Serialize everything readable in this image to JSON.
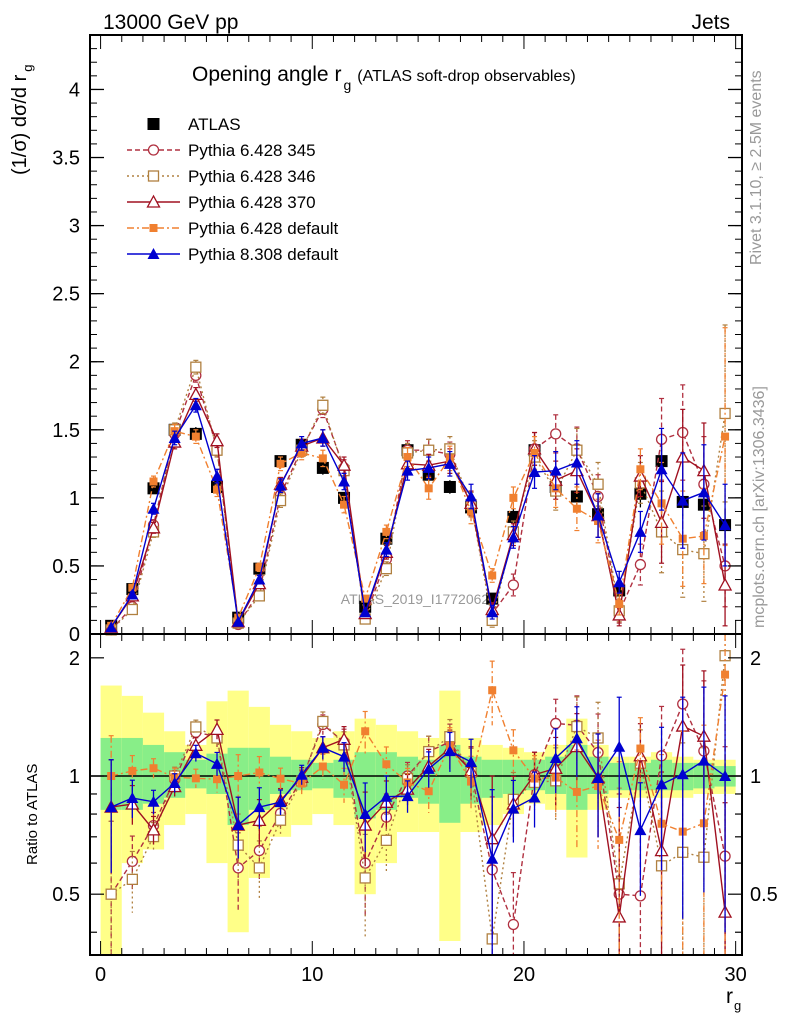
{
  "header": {
    "left": "13000 GeV pp",
    "right": "Jets"
  },
  "side_labels": {
    "rivet": "Rivet 3.1.10, ≥ 2.5M events",
    "mcplots": "mcplots.cern.ch [arXiv:1306.3436]"
  },
  "watermark": "ATLAS_2019_I1772062",
  "chart_data": {
    "type": "line",
    "title_main": "Opening angle r",
    "title_sub": "g",
    "title_paren": "(ATLAS soft-drop observables)",
    "ylabel_main": "(1/σ) dσ/d r",
    "ylabel_sub": "g",
    "xlabel_main": "r",
    "xlabel_sub": "g",
    "ratio_ylabel": "Ratio to ATLAS",
    "xlim": [
      -0.5,
      30.3
    ],
    "ylim": [
      0,
      4.4
    ],
    "ratio_ylim": [
      0.35,
      2.3
    ],
    "ratio_log": true,
    "x_ticks": [
      "0",
      "10",
      "20",
      "30"
    ],
    "x_tick_values": [
      0,
      10,
      20,
      30
    ],
    "y_ticks": [
      "0",
      "0.5",
      "1",
      "1.5",
      "2",
      "2.5",
      "3",
      "3.5",
      "4"
    ],
    "y_tick_values": [
      0,
      0.5,
      1,
      1.5,
      2,
      2.5,
      3,
      3.5,
      4
    ],
    "ratio_ticks": [
      "0.5",
      "1",
      "2"
    ],
    "ratio_tick_values": [
      0.5,
      1,
      2
    ],
    "x": [
      0.5,
      1.5,
      2.5,
      3.5,
      4.5,
      5.5,
      6.5,
      7.5,
      8.5,
      9.5,
      10.5,
      11.5,
      12.5,
      13.5,
      14.5,
      15.5,
      16.5,
      17.5,
      18.5,
      19.5,
      20.5,
      21.5,
      22.5,
      23.5,
      24.5,
      25.5,
      26.5,
      27.5,
      28.5,
      29.5
    ],
    "series": [
      {
        "name": "ATLAS",
        "color": "#000000",
        "marker": "square-filled",
        "values": [
          0.06,
          0.33,
          1.07,
          1.5,
          1.47,
          1.08,
          0.12,
          0.48,
          1.27,
          1.39,
          1.22,
          1.0,
          0.2,
          0.7,
          1.35,
          1.17,
          1.08,
          0.93,
          0.26,
          0.86,
          1.35,
          1.08,
          1.01,
          0.88,
          0.32,
          1.03,
          1.27,
          0.97,
          0.95,
          0.8
        ],
        "errors": [
          0.01,
          0.02,
          0.04,
          0.05,
          0.05,
          0.04,
          0.01,
          0.03,
          0.04,
          0.05,
          0.05,
          0.04,
          0.02,
          0.04,
          0.05,
          0.05,
          0.05,
          0.05,
          0.03,
          0.06,
          0.08,
          0.08,
          0.08,
          0.08,
          0.05,
          0.1,
          0.12,
          0.12,
          0.12,
          0.12
        ]
      },
      {
        "name": "Pythia 6.428 345",
        "color": "#b03040",
        "marker": "circle-open",
        "dash": "5,3",
        "values": [
          0.03,
          0.2,
          0.8,
          1.47,
          1.9,
          1.36,
          0.07,
          0.31,
          1.02,
          1.36,
          1.65,
          1.22,
          0.12,
          0.55,
          1.35,
          1.35,
          1.32,
          0.95,
          0.15,
          0.36,
          1.36,
          1.47,
          1.36,
          1.01,
          0.16,
          0.51,
          1.43,
          1.48,
          1.1,
          0.5
        ],
        "errors": [
          0.01,
          0.02,
          0.04,
          0.05,
          0.05,
          0.05,
          0.01,
          0.03,
          0.05,
          0.05,
          0.06,
          0.06,
          0.02,
          0.05,
          0.07,
          0.08,
          0.09,
          0.09,
          0.05,
          0.08,
          0.12,
          0.14,
          0.16,
          0.16,
          0.08,
          0.15,
          0.3,
          0.35,
          0.35,
          0.3
        ]
      },
      {
        "name": "Pythia 6.428 346",
        "color": "#b08040",
        "marker": "square-open",
        "dash": "2,3",
        "values": [
          0.03,
          0.18,
          0.75,
          1.5,
          1.96,
          1.35,
          0.08,
          0.28,
          0.98,
          1.35,
          1.68,
          1.2,
          0.11,
          0.48,
          1.33,
          1.35,
          1.36,
          0.95,
          0.1,
          0.75,
          1.3,
          1.05,
          1.35,
          1.1,
          0.17,
          1.11,
          0.75,
          0.62,
          0.59,
          1.62
        ],
        "errors": [
          0.01,
          0.02,
          0.04,
          0.05,
          0.05,
          0.05,
          0.01,
          0.03,
          0.05,
          0.05,
          0.06,
          0.06,
          0.02,
          0.05,
          0.07,
          0.08,
          0.09,
          0.09,
          0.05,
          0.08,
          0.12,
          0.14,
          0.16,
          0.16,
          0.08,
          0.15,
          0.3,
          0.35,
          0.35,
          0.65
        ]
      },
      {
        "name": "Pythia 6.428 370",
        "color": "#a01020",
        "marker": "triangle-open",
        "dash": "",
        "values": [
          0.05,
          0.28,
          0.78,
          1.41,
          1.76,
          1.42,
          0.09,
          0.37,
          1.1,
          1.38,
          1.44,
          1.24,
          0.15,
          0.6,
          1.25,
          1.24,
          1.27,
          0.96,
          0.18,
          0.73,
          1.36,
          1.13,
          1.2,
          0.87,
          0.14,
          1.16,
          0.82,
          1.3,
          1.2,
          0.36
        ],
        "errors": [
          0.01,
          0.02,
          0.04,
          0.05,
          0.05,
          0.05,
          0.01,
          0.03,
          0.05,
          0.05,
          0.06,
          0.06,
          0.02,
          0.05,
          0.07,
          0.08,
          0.09,
          0.09,
          0.05,
          0.08,
          0.12,
          0.14,
          0.16,
          0.16,
          0.08,
          0.15,
          0.3,
          0.35,
          0.35,
          0.3
        ]
      },
      {
        "name": "Pythia 6.428 default",
        "color": "#f08030",
        "marker": "square-filled-small",
        "dash": "7,3,2,3",
        "values": [
          0.06,
          0.34,
          1.12,
          1.49,
          1.45,
          1.06,
          0.12,
          0.49,
          1.25,
          1.33,
          1.29,
          0.95,
          0.26,
          0.75,
          1.3,
          1.07,
          1.29,
          0.9,
          0.43,
          1.0,
          1.33,
          1.07,
          0.92,
          0.83,
          0.22,
          1.21,
          0.96,
          0.7,
          0.72,
          1.45
        ],
        "errors": [
          0.01,
          0.02,
          0.04,
          0.05,
          0.05,
          0.05,
          0.01,
          0.03,
          0.05,
          0.05,
          0.06,
          0.06,
          0.02,
          0.05,
          0.07,
          0.08,
          0.09,
          0.09,
          0.05,
          0.08,
          0.12,
          0.14,
          0.16,
          0.16,
          0.08,
          0.15,
          0.3,
          0.35,
          0.35,
          0.8
        ]
      },
      {
        "name": "Pythia 8.308 default",
        "color": "#0000d0",
        "marker": "triangle-filled",
        "dash": "",
        "values": [
          0.05,
          0.29,
          0.92,
          1.44,
          1.68,
          1.16,
          0.09,
          0.4,
          1.09,
          1.4,
          1.44,
          1.12,
          0.16,
          0.62,
          1.2,
          1.22,
          1.25,
          1.01,
          0.16,
          0.71,
          1.19,
          1.2,
          1.26,
          0.87,
          0.38,
          0.75,
          1.21,
          0.98,
          1.04,
          0.8
        ],
        "errors": [
          0.01,
          0.02,
          0.04,
          0.05,
          0.05,
          0.05,
          0.01,
          0.03,
          0.05,
          0.05,
          0.06,
          0.06,
          0.02,
          0.05,
          0.07,
          0.08,
          0.09,
          0.09,
          0.05,
          0.08,
          0.12,
          0.14,
          0.16,
          0.16,
          0.08,
          0.15,
          0.3,
          0.35,
          0.35,
          0.3
        ]
      }
    ],
    "ratio_bands": {
      "inner_color": "#88ee88",
      "outer_color": "#ffff88",
      "inner": [
        [
          0.82,
          1.25
        ],
        [
          0.82,
          1.25
        ],
        [
          0.85,
          1.2
        ],
        [
          0.88,
          1.15
        ],
        [
          0.93,
          1.1
        ],
        [
          0.9,
          1.14
        ],
        [
          0.75,
          1.18
        ],
        [
          0.82,
          1.18
        ],
        [
          0.9,
          1.12
        ],
        [
          0.92,
          1.1
        ],
        [
          0.93,
          1.08
        ],
        [
          0.88,
          1.1
        ],
        [
          0.78,
          1.15
        ],
        [
          0.82,
          1.15
        ],
        [
          0.88,
          1.12
        ],
        [
          0.85,
          1.1
        ],
        [
          0.76,
          1.2
        ],
        [
          0.85,
          1.12
        ],
        [
          0.88,
          1.1
        ],
        [
          0.9,
          1.1
        ],
        [
          0.92,
          1.1
        ],
        [
          0.9,
          1.12
        ],
        [
          0.82,
          1.2
        ],
        [
          0.9,
          1.12
        ],
        [
          0.92,
          1.08
        ],
        [
          0.92,
          1.08
        ],
        [
          0.92,
          1.1
        ],
        [
          0.92,
          1.08
        ],
        [
          0.93,
          1.08
        ],
        [
          0.94,
          1.06
        ]
      ],
      "outer": [
        [
          0.35,
          1.7
        ],
        [
          0.6,
          1.6
        ],
        [
          0.65,
          1.45
        ],
        [
          0.75,
          1.3
        ],
        [
          0.8,
          1.2
        ],
        [
          0.6,
          1.55
        ],
        [
          0.4,
          1.65
        ],
        [
          0.55,
          1.5
        ],
        [
          0.7,
          1.35
        ],
        [
          0.75,
          1.3
        ],
        [
          0.8,
          1.25
        ],
        [
          0.75,
          1.3
        ],
        [
          0.5,
          1.4
        ],
        [
          0.6,
          1.35
        ],
        [
          0.72,
          1.3
        ],
        [
          0.72,
          1.25
        ],
        [
          0.38,
          1.65
        ],
        [
          0.72,
          1.25
        ],
        [
          0.75,
          1.2
        ],
        [
          0.8,
          1.18
        ],
        [
          0.85,
          1.15
        ],
        [
          0.82,
          1.2
        ],
        [
          0.62,
          1.4
        ],
        [
          0.82,
          1.2
        ],
        [
          0.88,
          1.12
        ],
        [
          0.88,
          1.12
        ],
        [
          0.88,
          1.15
        ],
        [
          0.88,
          1.12
        ],
        [
          0.9,
          1.1
        ],
        [
          0.9,
          1.1
        ]
      ]
    },
    "grid": false,
    "legend_position": "top-left"
  }
}
